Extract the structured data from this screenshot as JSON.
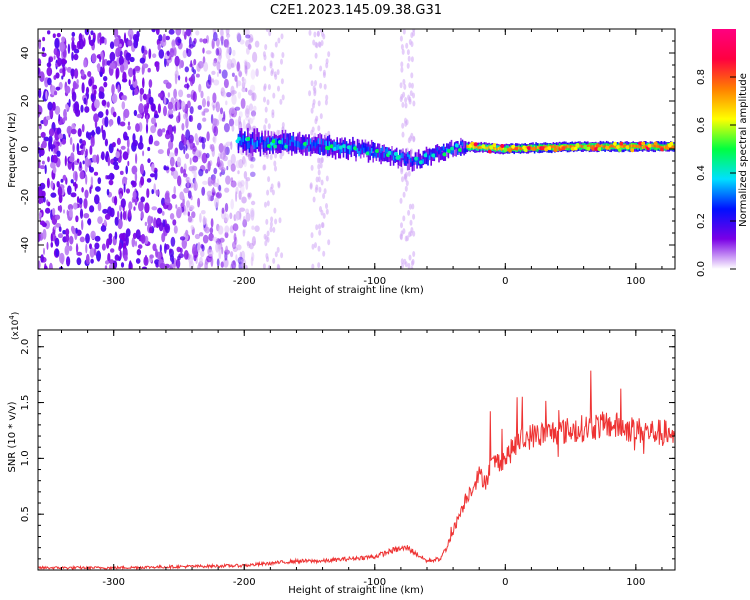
{
  "title": "C2E1.2023.145.09.38.G31",
  "chart_data": [
    {
      "type": "heatmap",
      "name": "spectrogram",
      "xlabel": "Height of straight line (km)",
      "ylabel": "Frequency (Hz)",
      "xlim": [
        -358,
        130
      ],
      "ylim": [
        -50,
        50
      ],
      "xticks": [
        -300,
        -200,
        -100,
        0,
        100
      ],
      "xtick_labels": [
        "-300",
        "-200",
        "-100",
        "0",
        "100"
      ],
      "yticks": [
        -40,
        -20,
        0,
        20,
        40
      ],
      "ytick_labels": [
        "-40",
        "-20",
        "0",
        "20",
        "40"
      ],
      "colorbar": {
        "label": "Normalized spectral amplitude",
        "range": [
          0,
          1
        ],
        "ticks": [
          0.0,
          0.2,
          0.4,
          0.6,
          0.8
        ],
        "tick_labels": [
          "0.0",
          "0.2",
          "0.4",
          "0.6",
          "0.8"
        ],
        "colormap": [
          "#ffffff",
          "#7a00e6",
          "#0010ff",
          "#00e0ff",
          "#00ff40",
          "#ffff00",
          "#ff8000",
          "#ff0040",
          "#ff0080"
        ]
      },
      "trend": {
        "x": [
          -200,
          -150,
          -100,
          -70,
          -40,
          -30,
          0,
          50,
          100,
          130
        ],
        "center_hz": [
          3,
          2,
          -1,
          -5,
          0,
          1,
          0,
          1,
          1,
          1
        ]
      },
      "noise_region_x": [
        -358,
        -190
      ]
    },
    {
      "type": "line",
      "name": "snr",
      "xlabel": "Height of straight line (km)",
      "ylabel": "SNR (10 * v/v)",
      "y_multiplier_label": "(x10",
      "y_multiplier_exp": "4",
      "y_multiplier_close": ")",
      "xlim": [
        -358,
        130
      ],
      "ylim": [
        0,
        2.15
      ],
      "xticks": [
        -300,
        -200,
        -100,
        0,
        100
      ],
      "xtick_labels": [
        "-300",
        "-200",
        "-100",
        "0",
        "100"
      ],
      "yticks": [
        0.5,
        1.0,
        1.5,
        2.0
      ],
      "ytick_labels": [
        "0.5",
        "1.0",
        "1.5",
        "2.0"
      ],
      "color": "#ee3333",
      "x": [
        -358,
        -300,
        -250,
        -200,
        -180,
        -160,
        -140,
        -120,
        -100,
        -85,
        -75,
        -60,
        -50,
        -45,
        -40,
        -35,
        -30,
        -25,
        -20,
        -15,
        -10,
        0,
        10,
        20,
        30,
        40,
        50,
        60,
        70,
        80,
        90,
        100,
        110,
        120,
        130
      ],
      "y": [
        0.02,
        0.02,
        0.03,
        0.04,
        0.06,
        0.08,
        0.08,
        0.1,
        0.12,
        0.18,
        0.2,
        0.08,
        0.1,
        0.2,
        0.35,
        0.5,
        0.65,
        0.75,
        0.85,
        0.8,
        0.95,
        1.0,
        1.15,
        1.2,
        1.22,
        1.24,
        1.25,
        1.27,
        1.29,
        1.3,
        1.28,
        1.25,
        1.24,
        1.23,
        1.22
      ]
    }
  ]
}
